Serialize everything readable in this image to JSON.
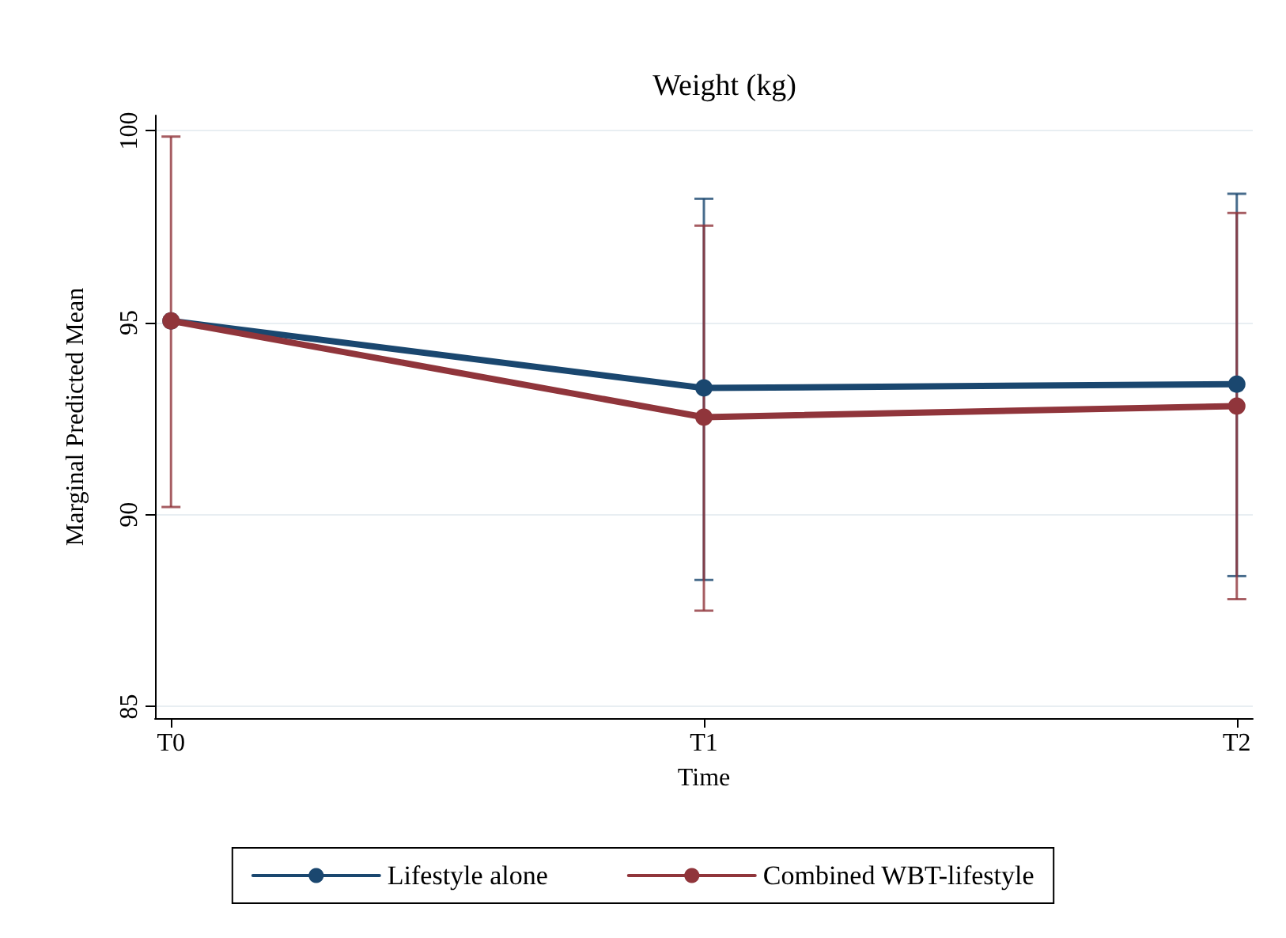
{
  "chart_data": {
    "type": "line",
    "title": "Weight (kg)",
    "xlabel": "Time",
    "ylabel": "Marginal Predicted Mean",
    "categories": [
      "T0",
      "T1",
      "T2"
    ],
    "ylim": [
      84.7,
      100.4
    ],
    "yticks": [
      85,
      90,
      95,
      100
    ],
    "series": [
      {
        "name": "Lifestyle alone",
        "color": "#1a476f",
        "values": [
          95.05,
          93.3,
          93.4
        ],
        "errors": [
          null,
          [
            88.3,
            98.23
          ],
          [
            88.4,
            98.36
          ]
        ]
      },
      {
        "name": "Combined WBT-lifestyle",
        "color": "#90353b",
        "values": [
          95.05,
          92.54,
          92.83
        ],
        "errors": [
          [
            90.2,
            99.85
          ],
          [
            87.5,
            97.53
          ],
          [
            87.8,
            97.86
          ]
        ]
      }
    ],
    "grid": "y",
    "legend": "bottom",
    "marker": "circle",
    "line_style": "solid"
  }
}
